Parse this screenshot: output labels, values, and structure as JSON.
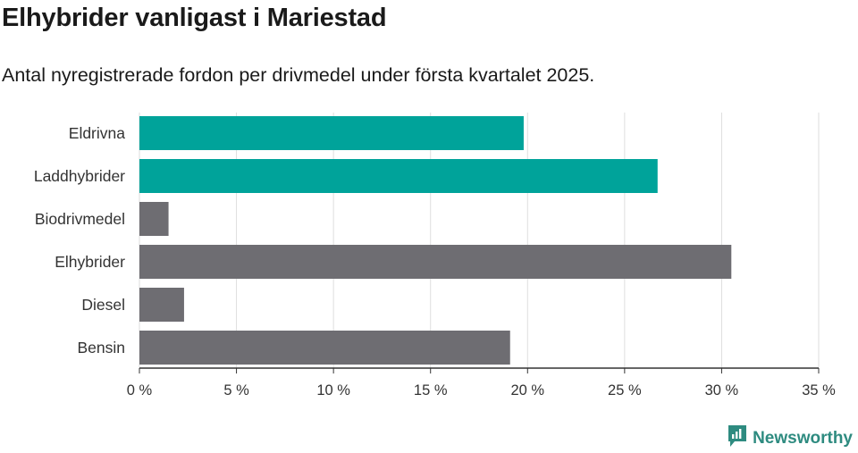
{
  "header": {
    "title": "Elhybrider vanligast i Mariestad",
    "subtitle": "Antal nyregistrerade fordon per drivmedel under första kvartalet 2025."
  },
  "brand": {
    "name": "Newsworthy",
    "icon": "newsworthy-logo-icon",
    "color": "#2e8b80"
  },
  "chart_data": {
    "type": "bar",
    "orientation": "horizontal",
    "categories": [
      "Eldrivna",
      "Laddhybrider",
      "Biodrivmedel",
      "Elhybrider",
      "Diesel",
      "Bensin"
    ],
    "values": [
      19.8,
      26.7,
      1.5,
      30.5,
      2.3,
      19.1
    ],
    "colors": [
      "#00a39a",
      "#00a39a",
      "#6e6d72",
      "#6e6d72",
      "#6e6d72",
      "#6e6d72"
    ],
    "xlim": [
      0,
      35
    ],
    "xticks": [
      0,
      5,
      10,
      15,
      20,
      25,
      30,
      35
    ],
    "xtick_labels": [
      "0 %",
      "5 %",
      "10 %",
      "15 %",
      "20 %",
      "25 %",
      "30 %",
      "35 %"
    ],
    "grid": true,
    "xlabel": "",
    "ylabel": ""
  }
}
